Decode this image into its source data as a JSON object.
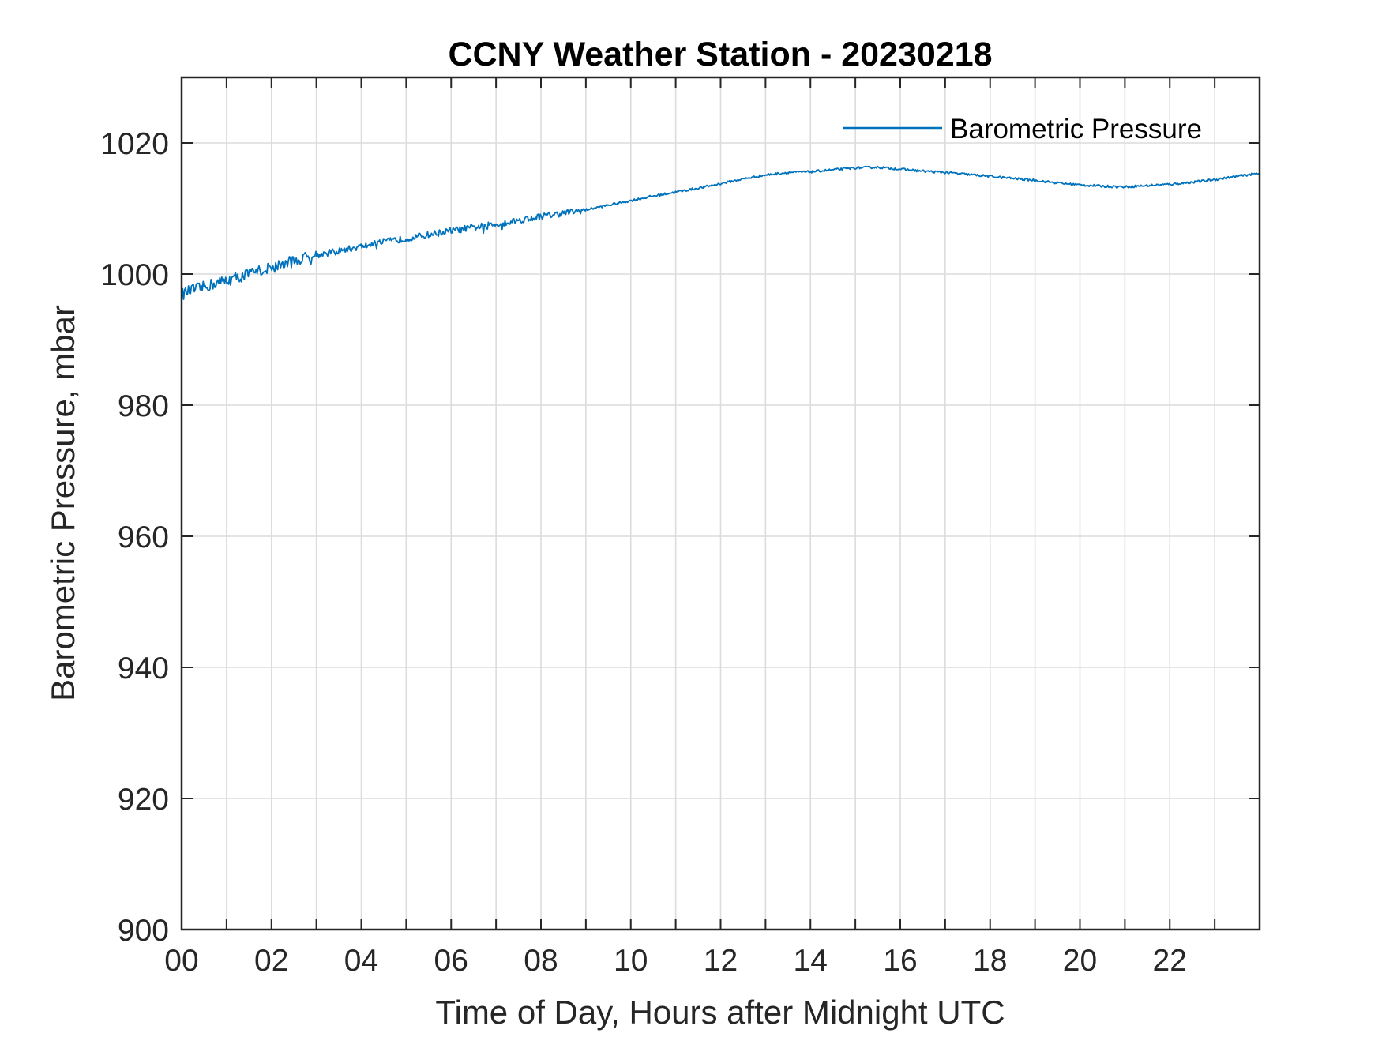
{
  "chart_data": {
    "type": "line",
    "title": "CCNY Weather Station - 20230218",
    "xlabel": "Time of Day, Hours after Midnight UTC",
    "ylabel": "Barometric Pressure, mbar",
    "xlim": [
      0,
      24
    ],
    "ylim": [
      900,
      1030
    ],
    "x_ticks": [
      0,
      2,
      4,
      6,
      8,
      10,
      12,
      14,
      16,
      18,
      20,
      22
    ],
    "x_tick_labels": [
      "00",
      "02",
      "04",
      "06",
      "08",
      "10",
      "12",
      "14",
      "16",
      "18",
      "20",
      "22"
    ],
    "x_minor_gridlines": [
      1,
      3,
      5,
      7,
      9,
      11,
      13,
      15,
      17,
      19,
      21,
      23
    ],
    "y_ticks": [
      900,
      920,
      940,
      960,
      980,
      1000,
      1020
    ],
    "y_tick_labels": [
      "900",
      "920",
      "940",
      "960",
      "980",
      "1000",
      "1020"
    ],
    "grid": true,
    "legend_position": "top-right",
    "colors": {
      "series": "#0072BD",
      "grid": "#dcdcdc",
      "axis": "#262626"
    },
    "series": [
      {
        "name": "Barometric Pressure",
        "x": [
          0,
          0.25,
          0.5,
          0.75,
          1,
          1.5,
          2,
          2.5,
          3,
          3.5,
          4,
          4.5,
          5,
          5.5,
          6,
          6.5,
          7,
          7.5,
          8,
          8.5,
          9,
          9.5,
          10,
          10.5,
          11,
          11.5,
          12,
          12.5,
          13,
          13.5,
          14,
          14.5,
          15,
          15.5,
          16,
          16.5,
          17,
          17.5,
          18,
          18.5,
          19,
          19.5,
          20,
          20.5,
          21,
          21.5,
          22,
          22.5,
          23,
          23.5,
          24
        ],
        "values": [
          996.9,
          997.6,
          998.0,
          998.6,
          999.0,
          1000.0,
          1001.0,
          1002.0,
          1002.9,
          1003.5,
          1004.2,
          1004.9,
          1005.4,
          1006.0,
          1006.6,
          1007.1,
          1007.6,
          1008.2,
          1008.8,
          1009.3,
          1009.8,
          1010.5,
          1011.2,
          1011.9,
          1012.5,
          1013.1,
          1013.8,
          1014.5,
          1015.1,
          1015.5,
          1015.6,
          1015.9,
          1016.2,
          1016.3,
          1016.0,
          1015.7,
          1015.5,
          1015.2,
          1014.9,
          1014.6,
          1014.3,
          1013.9,
          1013.6,
          1013.4,
          1013.3,
          1013.5,
          1013.7,
          1014.0,
          1014.4,
          1014.9,
          1015.4
        ]
      }
    ]
  }
}
